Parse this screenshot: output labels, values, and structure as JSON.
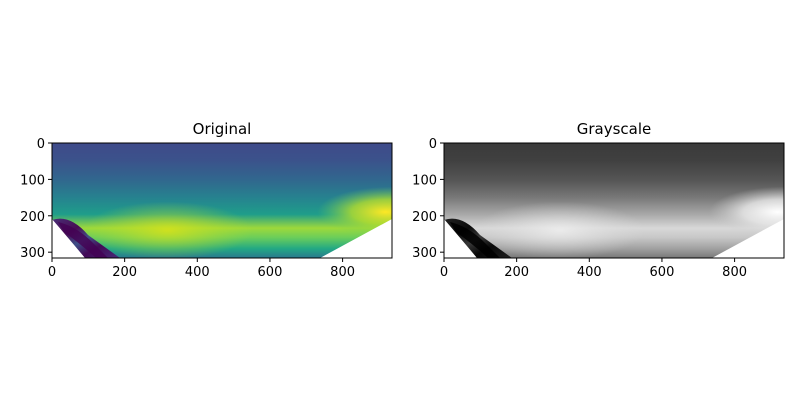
{
  "chart_data": [
    {
      "type": "heatmap",
      "title": "Original",
      "colormap": "viridis",
      "colormap_colors": [
        "#440154",
        "#482777",
        "#3f4a8a",
        "#31678e",
        "#26838f",
        "#1f9d8a",
        "#6cce5a",
        "#b6de2b",
        "#fee825"
      ],
      "image_extent": {
        "x": [
          0,
          936
        ],
        "y": [
          0,
          316
        ]
      },
      "xlim": [
        0,
        936
      ],
      "ylim": [
        316,
        0
      ],
      "xticks": [
        0,
        200,
        400,
        600,
        800
      ],
      "yticks": [
        0,
        100,
        200,
        300
      ],
      "xlabel": "",
      "ylabel": "",
      "blank_region": "white wedges along the bottom edge (from y≈210 at x=0 down toward x≈120 on the left, and from x≈740 at the bottom up to y≈210 at x=936 on the right)",
      "intensity_description": "dark blue near top, bright band around y≈200–240, brightest yellow near right edge around y≈200, dark purple streaks in the lower-left wedge"
    },
    {
      "type": "heatmap",
      "title": "Grayscale",
      "colormap": "gray",
      "colormap_colors": [
        "#000000",
        "#ffffff"
      ],
      "image_extent": {
        "x": [
          0,
          936
        ],
        "y": [
          0,
          316
        ]
      },
      "xlim": [
        0,
        936
      ],
      "ylim": [
        316,
        0
      ],
      "xticks": [
        0,
        200,
        400,
        600,
        800
      ],
      "yticks": [
        0,
        100,
        200,
        300
      ],
      "xlabel": "",
      "ylabel": "",
      "blank_region": "same white wedges along the bottom edge as the original",
      "intensity_description": "dark gray near top, light band around y≈200–240, brightest near right edge around y≈200, black streaks in the lower-left wedge"
    }
  ]
}
